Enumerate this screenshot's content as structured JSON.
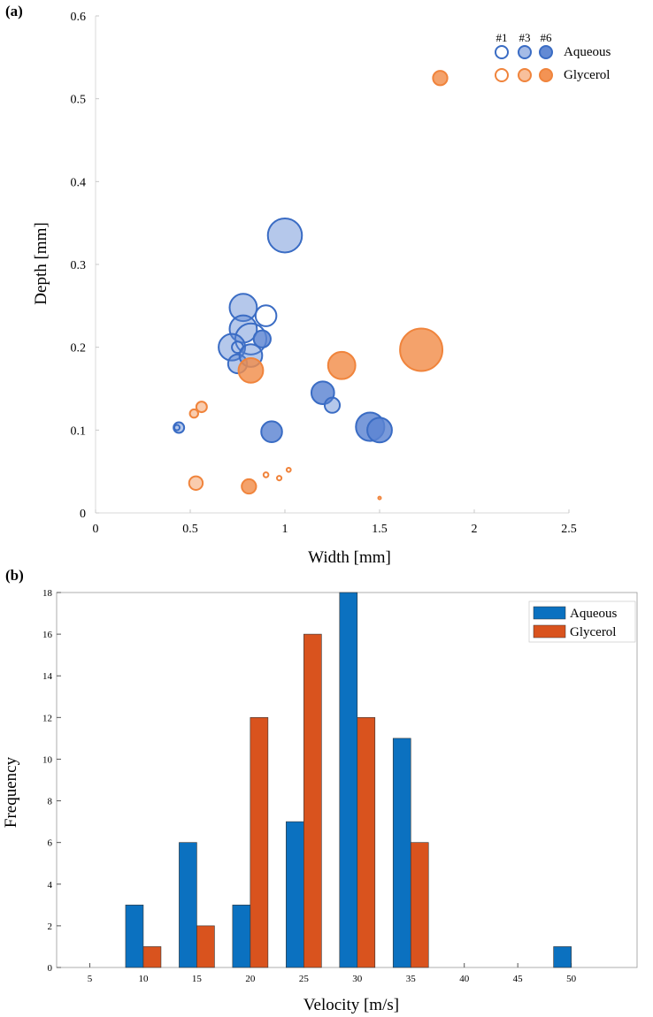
{
  "colors": {
    "aqueous": "#3a6cc4",
    "aqueous_fill": "#5b84d2",
    "glycerol": "#f0843c",
    "glycerol_fill": "#f28d4b",
    "bar_aqueous": "#0b71c0",
    "bar_glycerol": "#d9531e"
  },
  "chart_data": [
    {
      "panel_label": "(a)",
      "type": "scatter",
      "xlabel": "Width [mm]",
      "ylabel": "Depth [mm]",
      "xlim": [
        0,
        2.5
      ],
      "ylim": [
        0,
        0.6
      ],
      "x_ticks": [
        "0",
        "0.5",
        "1",
        "1.5",
        "2",
        "2.5"
      ],
      "y_ticks": [
        "0",
        "0.1",
        "0.2",
        "0.3",
        "0.4",
        "0.5",
        "0.6"
      ],
      "legend_position": "top-right",
      "legend_headers": [
        "#1",
        "#3",
        "#6"
      ],
      "series": [
        {
          "name": "Aqueous",
          "points": [
            {
              "x": 1.0,
              "y": 0.335,
              "r": 0.09,
              "level": 3
            },
            {
              "x": 0.78,
              "y": 0.248,
              "r": 0.072,
              "level": 3
            },
            {
              "x": 0.9,
              "y": 0.238,
              "r": 0.055,
              "level": 1
            },
            {
              "x": 0.78,
              "y": 0.222,
              "r": 0.072,
              "level": 3
            },
            {
              "x": 0.82,
              "y": 0.21,
              "r": 0.082,
              "level": 1
            },
            {
              "x": 0.88,
              "y": 0.21,
              "r": 0.045,
              "level": 6
            },
            {
              "x": 0.72,
              "y": 0.2,
              "r": 0.07,
              "level": 3
            },
            {
              "x": 0.75,
              "y": 0.2,
              "r": 0.03,
              "level": 1
            },
            {
              "x": 0.75,
              "y": 0.18,
              "r": 0.05,
              "level": 3
            },
            {
              "x": 0.82,
              "y": 0.19,
              "r": 0.06,
              "level": 3
            },
            {
              "x": 0.93,
              "y": 0.098,
              "r": 0.055,
              "level": 6
            },
            {
              "x": 1.2,
              "y": 0.145,
              "r": 0.06,
              "level": 6
            },
            {
              "x": 1.25,
              "y": 0.13,
              "r": 0.04,
              "level": 3
            },
            {
              "x": 1.45,
              "y": 0.104,
              "r": 0.075,
              "level": 6
            },
            {
              "x": 1.5,
              "y": 0.1,
              "r": 0.065,
              "level": 6
            },
            {
              "x": 0.44,
              "y": 0.103,
              "r": 0.028,
              "level": 3
            },
            {
              "x": 0.43,
              "y": 0.103,
              "r": 0.014,
              "level": 1
            }
          ]
        },
        {
          "name": "Glycerol",
          "points": [
            {
              "x": 1.82,
              "y": 0.525,
              "r": 0.038,
              "level": 6
            },
            {
              "x": 1.72,
              "y": 0.197,
              "r": 0.112,
              "level": 6
            },
            {
              "x": 1.3,
              "y": 0.178,
              "r": 0.072,
              "level": 6
            },
            {
              "x": 0.82,
              "y": 0.172,
              "r": 0.065,
              "level": 6
            },
            {
              "x": 0.56,
              "y": 0.128,
              "r": 0.028,
              "level": 3
            },
            {
              "x": 0.52,
              "y": 0.12,
              "r": 0.022,
              "level": 3
            },
            {
              "x": 0.53,
              "y": 0.036,
              "r": 0.036,
              "level": 3
            },
            {
              "x": 0.81,
              "y": 0.032,
              "r": 0.038,
              "level": 6
            },
            {
              "x": 0.9,
              "y": 0.046,
              "r": 0.013,
              "level": 1
            },
            {
              "x": 0.97,
              "y": 0.042,
              "r": 0.012,
              "level": 1
            },
            {
              "x": 1.02,
              "y": 0.052,
              "r": 0.011,
              "level": 1
            },
            {
              "x": 1.5,
              "y": 0.018,
              "r": 0.007,
              "level": 1
            }
          ]
        }
      ]
    },
    {
      "panel_label": "(b)",
      "type": "bar",
      "xlabel": "Velocity [m/s]",
      "ylabel": "Frequency",
      "categories": [
        "5",
        "10",
        "15",
        "20",
        "25",
        "30",
        "35",
        "40",
        "45",
        "50"
      ],
      "ylim": [
        0,
        18
      ],
      "y_ticks": [
        "0",
        "2",
        "4",
        "6",
        "8",
        "10",
        "12",
        "14",
        "16",
        "18"
      ],
      "legend_position": "top-right",
      "series": [
        {
          "name": "Aqueous",
          "values": [
            0,
            3,
            6,
            3,
            7,
            18,
            11,
            0,
            0,
            1
          ]
        },
        {
          "name": "Glycerol",
          "values": [
            0,
            1,
            2,
            12,
            16,
            12,
            6,
            0,
            0,
            0
          ]
        }
      ]
    }
  ]
}
